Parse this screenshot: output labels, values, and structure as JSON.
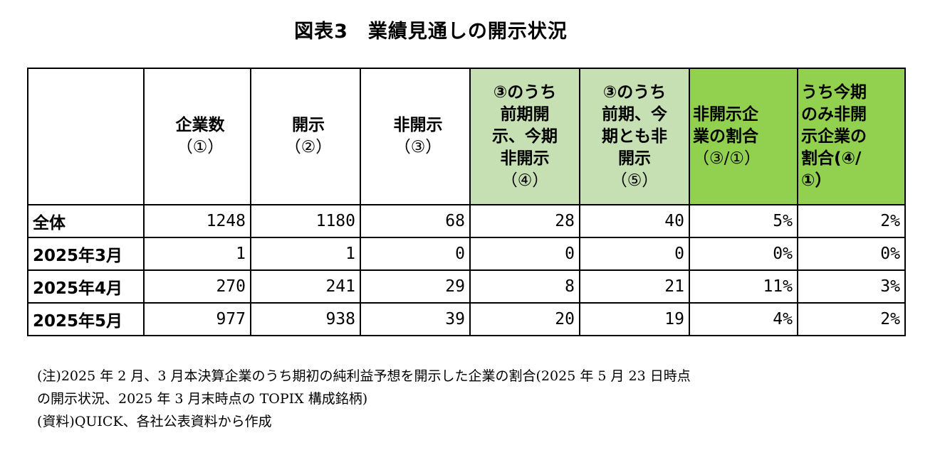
{
  "title": "図表3　業績見通しの開示状況",
  "header": {
    "col0": "",
    "col1": [
      "企業数",
      "（①）"
    ],
    "col2": [
      "開示",
      "（②）"
    ],
    "col3": [
      "非開示",
      "（③）"
    ],
    "col4": [
      "③のうち",
      "前期開",
      "示、今期",
      "非開示",
      "（④）"
    ],
    "col5": [
      "③のうち",
      "前期、今",
      "期とも非",
      "開示",
      "（⑤）"
    ],
    "col6": [
      "非開示企",
      "業の割合",
      "（③/①）"
    ],
    "col7": [
      "うち今期",
      "のみ非開",
      "示企業の",
      "割合(④/",
      "①）"
    ]
  },
  "colors": {
    "light_green": "#c6e0b4",
    "green": "#92d050"
  },
  "rows": [
    {
      "label": "全体",
      "values": [
        "1248",
        "1180",
        "68",
        "28",
        "40",
        "5%",
        "2%"
      ]
    },
    {
      "label": "2025年3月",
      "values": [
        "1",
        "1",
        "0",
        "0",
        "0",
        "0%",
        "0%"
      ]
    },
    {
      "label": "2025年4月",
      "values": [
        "270",
        "241",
        "29",
        "8",
        "21",
        "11%",
        "3%"
      ]
    },
    {
      "label": "2025年5月",
      "values": [
        "977",
        "938",
        "39",
        "20",
        "19",
        "4%",
        "2%"
      ]
    }
  ],
  "notes": [
    "(注)2025 年 2 月、3 月本決算企業のうち期初の純利益予想を開示した企業の割合(2025 年 5 月 23 日時点",
    "の開示状況、2025 年 3 月末時点の TOPIX 構成銘柄)",
    "(資料)QUICK、各社公表資料から作成"
  ]
}
